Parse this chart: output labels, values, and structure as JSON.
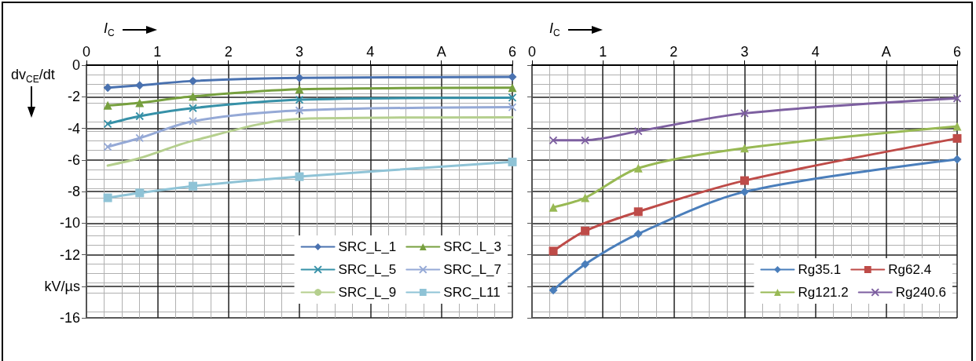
{
  "chart_data": [
    {
      "type": "line",
      "xlabel": "I$_{C}$",
      "ylabel": "dv$_{CE}$/dt",
      "x": [
        0.3,
        0.75,
        1.5,
        3,
        6
      ],
      "xlim": [
        0,
        6
      ],
      "xticks": [
        0,
        1,
        2,
        3,
        4,
        {
          "value": 5,
          "label": "A"
        },
        6
      ],
      "ylim": [
        -16,
        0
      ],
      "yticks": [
        0,
        -2,
        -4,
        -6,
        -8,
        -10,
        -12,
        {
          "value": -14,
          "label": "kV/µs"
        },
        -16
      ],
      "grid": true,
      "legend": "bottom right",
      "line_style": "solid",
      "series": [
        {
          "name": "SRC_L_1",
          "color": "#4a72b0",
          "marker": "diamond",
          "values": [
            -1.43,
            -1.28,
            -1.0,
            -0.81,
            -0.74
          ]
        },
        {
          "name": "SRC_L_3",
          "color": "#77a03f",
          "marker": "triangle",
          "values": [
            -2.55,
            -2.38,
            -1.98,
            -1.53,
            -1.43
          ]
        },
        {
          "name": "SRC_L_5",
          "color": "#3791a8",
          "marker": "cross",
          "values": [
            -3.72,
            -3.23,
            -2.72,
            -2.19,
            -2.06
          ]
        },
        {
          "name": "SRC_L_7",
          "color": "#95a9d6",
          "marker": "cross",
          "values": [
            -5.17,
            -4.62,
            -3.55,
            -2.87,
            -2.66
          ]
        },
        {
          "name": "SRC_L_9",
          "color": "#b5cf8e",
          "marker": "none",
          "values": [
            -6.36,
            -5.89,
            -4.79,
            -3.4,
            -3.3
          ]
        },
        {
          "name": "SRC_L11",
          "color": "#8fc3d6",
          "marker": "square",
          "values": [
            -8.4,
            -8.09,
            -7.66,
            -7.06,
            -6.13
          ]
        }
      ]
    },
    {
      "type": "line",
      "xlabel": "I$_{C}$",
      "x": [
        0.3,
        0.75,
        1.5,
        3,
        6
      ],
      "xlim": [
        0,
        6
      ],
      "xticks": [
        0,
        1,
        2,
        3,
        4,
        {
          "value": 5,
          "label": "A"
        },
        6
      ],
      "ylim": [
        -16,
        0
      ],
      "yticks": [
        0,
        -2,
        -4,
        -6,
        -8,
        -10,
        -12,
        -14,
        -16
      ],
      "tick_labels": "x",
      "grid": true,
      "legend": "bottom right",
      "line_style": "solid",
      "series": [
        {
          "name": "Rg35.1",
          "color": "#4a7ebb",
          "marker": "diamond",
          "values": [
            -14.25,
            -12.61,
            -10.68,
            -8.02,
            -5.96
          ]
        },
        {
          "name": "Rg62.4",
          "color": "#be4b48",
          "marker": "square",
          "values": [
            -11.77,
            -10.5,
            -9.28,
            -7.31,
            -4.64
          ]
        },
        {
          "name": "Rg121.2",
          "color": "#98b954",
          "marker": "triangle",
          "values": [
            -9.0,
            -8.4,
            -6.52,
            -5.25,
            -3.88
          ]
        },
        {
          "name": "Rg240.6",
          "color": "#7d5fa0",
          "marker": "cross",
          "values": [
            -4.76,
            -4.76,
            -4.18,
            -3.05,
            -2.1
          ]
        }
      ]
    }
  ]
}
